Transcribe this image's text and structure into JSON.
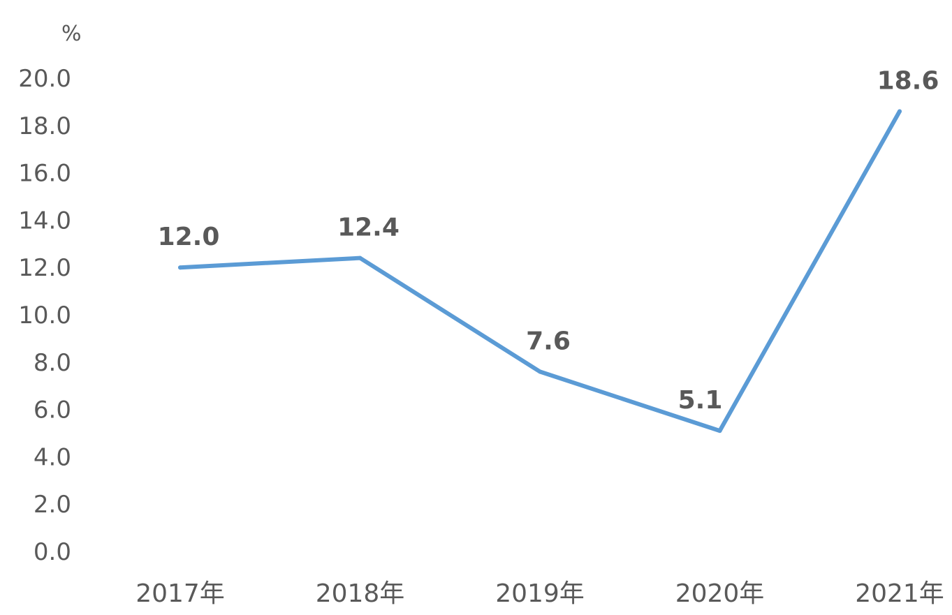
{
  "chart_data": {
    "type": "line",
    "title": "",
    "xlabel": "",
    "ylabel": "%",
    "categories": [
      "2017年",
      "2018年",
      "2019年",
      "2020年",
      "2021年"
    ],
    "series": [
      {
        "values": [
          12.0,
          12.4,
          7.6,
          5.1,
          18.6
        ],
        "data_labels": [
          "12.0",
          "12.4",
          "7.6",
          "5.1",
          "18.6"
        ]
      }
    ],
    "ylim": [
      0,
      20
    ],
    "yticks": [
      "0.0",
      "2.0",
      "4.0",
      "6.0",
      "8.0",
      "10.0",
      "12.0",
      "14.0",
      "16.0",
      "18.0",
      "20.0"
    ],
    "grid": false,
    "legend": "none",
    "line_color": "#5B9BD5",
    "text_color": "#595959"
  }
}
